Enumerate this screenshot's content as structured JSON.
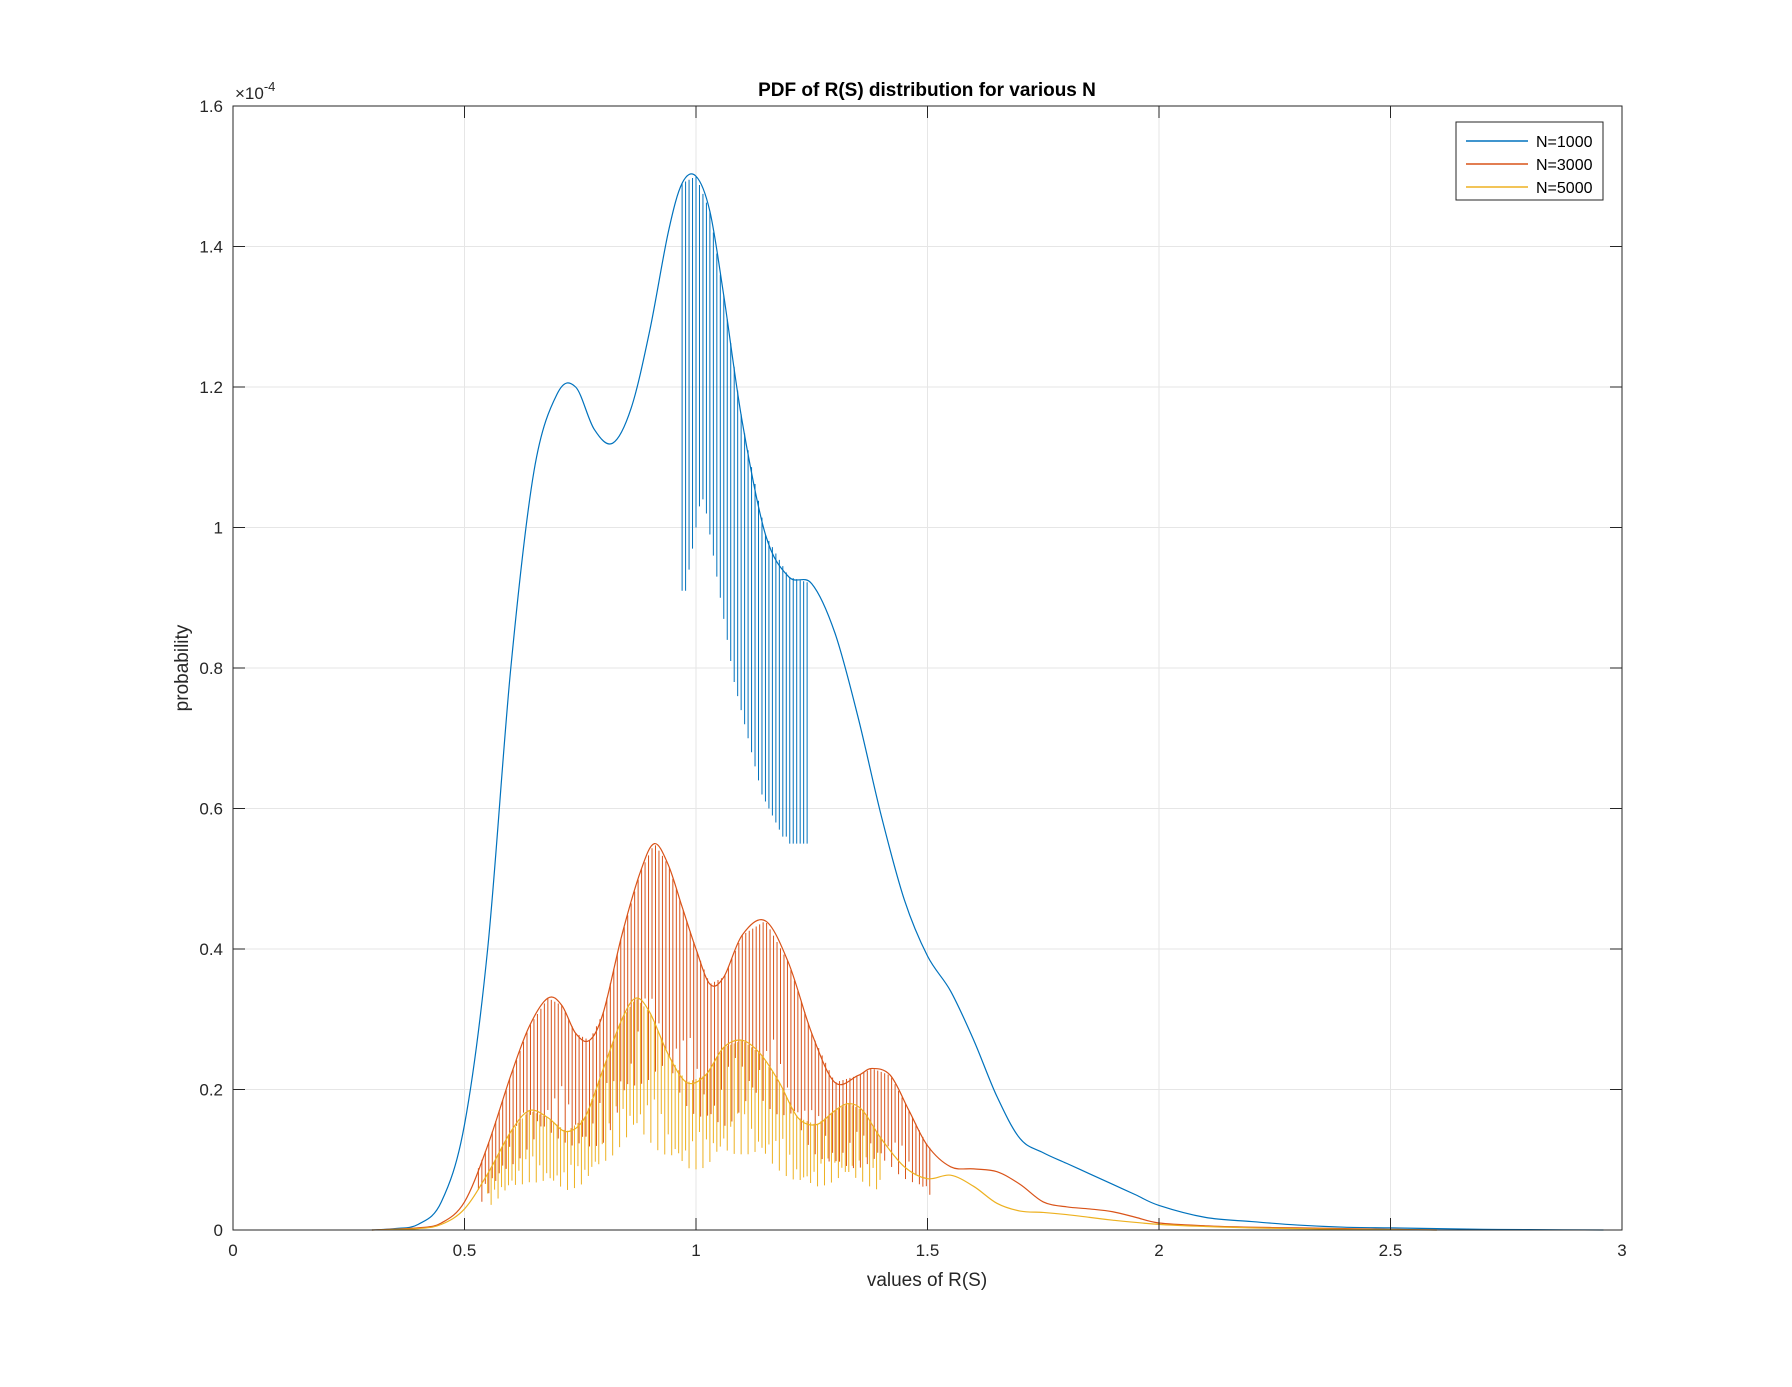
{
  "chart_data": {
    "type": "line",
    "title": "PDF of R(S) distribution for various N",
    "xlabel": "values of R(S)",
    "ylabel": "probability",
    "xlim": [
      0,
      3
    ],
    "ylim": [
      0,
      0.00016
    ],
    "exponent_label": "×10",
    "exponent_power": "-4",
    "grid": true,
    "legend_position": "top-right",
    "x_ticks": [
      {
        "value": 0,
        "label": "0"
      },
      {
        "value": 0.5,
        "label": "0.5"
      },
      {
        "value": 1,
        "label": "1"
      },
      {
        "value": 1.5,
        "label": "1.5"
      },
      {
        "value": 2,
        "label": "2"
      },
      {
        "value": 2.5,
        "label": "2.5"
      },
      {
        "value": 3,
        "label": "3"
      }
    ],
    "y_ticks": [
      {
        "value": 0,
        "label": "0"
      },
      {
        "value": 2e-05,
        "label": "0.2"
      },
      {
        "value": 4e-05,
        "label": "0.4"
      },
      {
        "value": 6e-05,
        "label": "0.6"
      },
      {
        "value": 8e-05,
        "label": "0.8"
      },
      {
        "value": 0.0001,
        "label": "1"
      },
      {
        "value": 0.00012,
        "label": "1.2"
      },
      {
        "value": 0.00014,
        "label": "1.4"
      },
      {
        "value": 0.00016,
        "label": "1.6"
      }
    ],
    "series": [
      {
        "name": "N=1000",
        "color": "#0072BD",
        "x": [
          0.3,
          0.35,
          0.4,
          0.45,
          0.5,
          0.55,
          0.6,
          0.65,
          0.7,
          0.74,
          0.78,
          0.82,
          0.86,
          0.9,
          0.94,
          0.97,
          1.0,
          1.03,
          1.06,
          1.1,
          1.15,
          1.2,
          1.25,
          1.3,
          1.35,
          1.4,
          1.45,
          1.5,
          1.55,
          1.6,
          1.65,
          1.7,
          1.75,
          1.8,
          1.85,
          1.9,
          1.95,
          2.0,
          2.1,
          2.2,
          2.3,
          2.4,
          2.5,
          2.6,
          2.7,
          2.8,
          2.96
        ],
        "values": [
          0,
          2e-07,
          8e-07,
          4e-06,
          1.5e-05,
          4e-05,
          8e-05,
          0.000108,
          0.000119,
          0.00012,
          0.000114,
          0.000112,
          0.000117,
          0.000128,
          0.000142,
          0.000149,
          0.00015,
          0.000145,
          0.000133,
          0.000115,
          9.9e-05,
          9.3e-05,
          9.2e-05,
          8.5e-05,
          7.3e-05,
          5.9e-05,
          4.7e-05,
          3.9e-05,
          3.4e-05,
          2.7e-05,
          1.9e-05,
          1.3e-05,
          1.1e-05,
          9.5e-06,
          8e-06,
          6.5e-06,
          5e-06,
          3.5e-06,
          1.8e-06,
          1.2e-06,
          7e-07,
          4e-07,
          3e-07,
          2e-07,
          1e-07,
          5e-08,
          0
        ],
        "spikes": {
          "x_start": 0.97,
          "x_end": 1.24,
          "step": 0.0075,
          "min_values": [
            9.1e-05,
            9.1e-05,
            9.4e-05,
            9.7e-05,
            0.0001,
            0.000103,
            0.000104,
            0.000102,
            9.9e-05,
            9.6e-05,
            9.3e-05,
            9e-05,
            8.7e-05,
            8.4e-05,
            8.1e-05,
            7.8e-05,
            7.6e-05,
            7.4e-05,
            7.2e-05,
            7e-05,
            6.8e-05,
            6.6e-05,
            6.4e-05,
            6.2e-05,
            6.1e-05,
            6e-05,
            5.9e-05,
            5.8e-05,
            5.7e-05,
            5.6e-05,
            5.6e-05,
            5.5e-05,
            5.5e-05,
            5.5e-05,
            5.5e-05,
            5.5e-05,
            5.5e-05
          ]
        }
      },
      {
        "name": "N=3000",
        "color": "#D95319",
        "x": [
          0.3,
          0.4,
          0.45,
          0.5,
          0.55,
          0.6,
          0.64,
          0.68,
          0.71,
          0.74,
          0.77,
          0.8,
          0.84,
          0.88,
          0.91,
          0.94,
          0.97,
          1.0,
          1.03,
          1.06,
          1.1,
          1.15,
          1.2,
          1.25,
          1.3,
          1.35,
          1.38,
          1.42,
          1.46,
          1.5,
          1.55,
          1.6,
          1.65,
          1.7,
          1.75,
          1.8,
          1.85,
          1.9,
          1.95,
          2.0,
          2.1,
          2.2,
          2.3,
          2.4,
          2.5,
          2.6
        ],
        "values": [
          0,
          3e-07,
          1e-06,
          4e-06,
          1.2e-05,
          2.2e-05,
          2.9e-05,
          3.3e-05,
          3.2e-05,
          2.8e-05,
          2.7e-05,
          3.1e-05,
          4.2e-05,
          5.1e-05,
          5.5e-05,
          5.2e-05,
          4.6e-05,
          4e-05,
          3.5e-05,
          3.6e-05,
          4.2e-05,
          4.4e-05,
          3.8e-05,
          2.8e-05,
          2.1e-05,
          2.2e-05,
          2.3e-05,
          2.2e-05,
          1.7e-05,
          1.2e-05,
          9e-06,
          8.7e-06,
          8.3e-06,
          6.5e-06,
          4e-06,
          3.3e-06,
          3e-06,
          2.6e-06,
          1.8e-06,
          1e-06,
          6e-07,
          4e-07,
          3e-07,
          2e-07,
          1e-07,
          0
        ],
        "spikes": {
          "x_start": 0.53,
          "x_end": 1.51,
          "step": 0.0075,
          "min_values": []
        }
      },
      {
        "name": "N=5000",
        "color": "#EDB120",
        "x": [
          0.3,
          0.4,
          0.45,
          0.5,
          0.55,
          0.6,
          0.64,
          0.68,
          0.72,
          0.76,
          0.8,
          0.84,
          0.87,
          0.9,
          0.94,
          0.98,
          1.02,
          1.06,
          1.1,
          1.14,
          1.18,
          1.22,
          1.26,
          1.3,
          1.33,
          1.36,
          1.4,
          1.45,
          1.5,
          1.55,
          1.6,
          1.65,
          1.7,
          1.75,
          1.8,
          1.85,
          1.9,
          2.0,
          2.1,
          2.2,
          2.3,
          2.4,
          2.6
        ],
        "values": [
          0,
          2e-07,
          8e-07,
          3e-06,
          8e-06,
          1.4e-05,
          1.7e-05,
          1.6e-05,
          1.4e-05,
          1.6e-05,
          2.3e-05,
          3e-05,
          3.3e-05,
          3.1e-05,
          2.5e-05,
          2.1e-05,
          2.2e-05,
          2.6e-05,
          2.7e-05,
          2.5e-05,
          2.1e-05,
          1.6e-05,
          1.5e-05,
          1.7e-05,
          1.8e-05,
          1.7e-05,
          1.3e-05,
          9e-06,
          7.3e-06,
          7.8e-06,
          6.2e-06,
          3.8e-06,
          2.7e-06,
          2.5e-06,
          2.2e-06,
          1.8e-06,
          1.4e-06,
          8e-07,
          5e-07,
          3e-07,
          2e-07,
          1e-07,
          0
        ],
        "spikes": {
          "x_start": 0.55,
          "x_end": 1.4,
          "step": 0.0075,
          "min_values": []
        }
      }
    ]
  }
}
